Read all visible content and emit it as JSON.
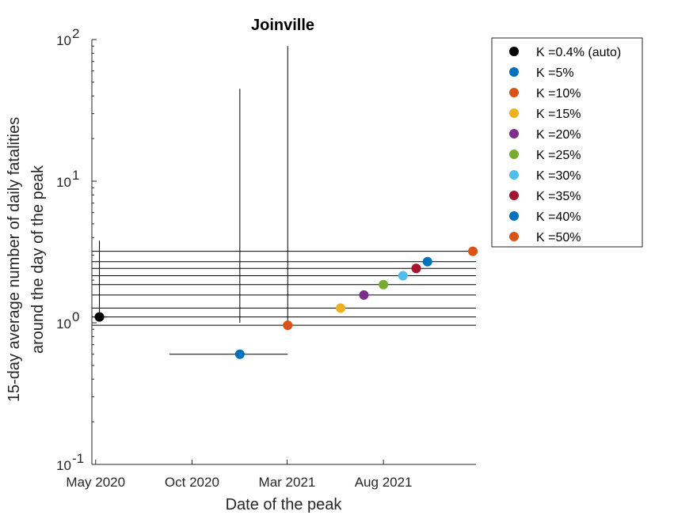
{
  "chart_data": {
    "type": "scatter",
    "title": "Joinville",
    "xlabel": "Date of the peak",
    "ylabel": [
      "15-day average number of daily fatalities",
      "around the day of the peak"
    ],
    "y_scale": "log",
    "ylim": [
      0.1,
      100
    ],
    "xlim": [
      "2020-04-25",
      "2021-12-26"
    ],
    "y_ticks": [
      {
        "value": 0.1,
        "base": "10",
        "exp": "-1"
      },
      {
        "value": 1,
        "base": "10",
        "exp": "0"
      },
      {
        "value": 10,
        "base": "10",
        "exp": "1"
      },
      {
        "value": 100,
        "base": "10",
        "exp": "2"
      }
    ],
    "x_ticks": [
      {
        "date": "2020-05-01",
        "label": "May 2020"
      },
      {
        "date": "2020-10-01",
        "label": "Oct 2020"
      },
      {
        "date": "2021-03-01",
        "label": "Mar 2021"
      },
      {
        "date": "2021-08-01",
        "label": "Aug 2021"
      }
    ],
    "grid": false,
    "legend_position": "outside-top-right",
    "reference_lines": [
      1.1,
      0.96,
      1.27,
      1.57,
      1.86,
      2.15,
      2.42,
      2.7,
      3.2
    ],
    "series": [
      {
        "name": "K =0.4% (auto)",
        "color": "#000000",
        "x": "2020-05-07",
        "y": 1.1,
        "x_err": [
          "2020-04-25",
          "2020-05-19"
        ],
        "y_err": [
          1.03,
          3.8
        ]
      },
      {
        "name": "K =5%",
        "color": "#0072BD",
        "x": "2020-12-16",
        "y": 0.6,
        "x_err": [
          "2020-08-26",
          "2021-03-02"
        ],
        "y_err": [
          1.0,
          45
        ]
      },
      {
        "name": "K =10%",
        "color": "#D95319",
        "x": "2021-03-02",
        "y": 0.96,
        "y_err": [
          0.96,
          90
        ]
      },
      {
        "name": "K =15%",
        "color": "#EDB120",
        "x": "2021-05-25",
        "y": 1.27
      },
      {
        "name": "K =20%",
        "color": "#7E2F8E",
        "x": "2021-07-01",
        "y": 1.57
      },
      {
        "name": "K =25%",
        "color": "#77AC30",
        "x": "2021-08-01",
        "y": 1.86
      },
      {
        "name": "K =30%",
        "color": "#4DBEEE",
        "x": "2021-09-01",
        "y": 2.15
      },
      {
        "name": "K =35%",
        "color": "#A2142F",
        "x": "2021-09-22",
        "y": 2.42
      },
      {
        "name": "K =40%",
        "color": "#0072BD",
        "x": "2021-10-10",
        "y": 2.7
      },
      {
        "name": "K =50%",
        "color": "#D95319",
        "x": "2021-12-21",
        "y": 3.2
      }
    ]
  }
}
